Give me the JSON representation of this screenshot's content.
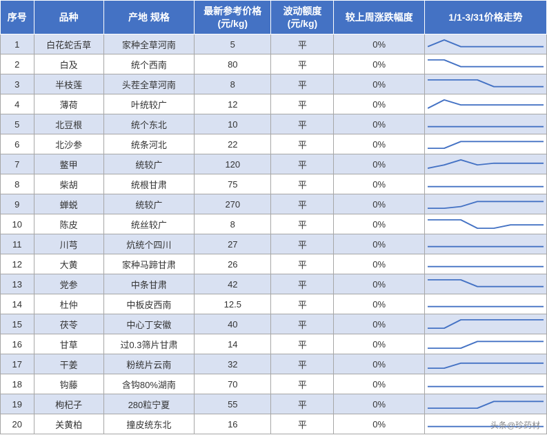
{
  "table": {
    "header_bg": "#4472c4",
    "header_fg": "#ffffff",
    "row_odd_bg": "#d9e1f2",
    "row_even_bg": "#ffffff",
    "border_color": "#a6a6a6",
    "spark_color": "#4472c4",
    "columns": [
      {
        "key": "idx",
        "label": "序号"
      },
      {
        "key": "name",
        "label": "品种"
      },
      {
        "key": "spec",
        "label": "产地 规格"
      },
      {
        "key": "price",
        "label": "最新参考价格\n(元/kg)"
      },
      {
        "key": "amp",
        "label": "波动额度\n(元/kg)"
      },
      {
        "key": "chg",
        "label": "较上周涨跌幅度"
      },
      {
        "key": "trend",
        "label": "1/1-3/31价格走势"
      }
    ],
    "rows": [
      {
        "idx": "1",
        "name": "白花蛇舌草",
        "spec": "家种全草河南",
        "price": "5",
        "amp": "平",
        "chg": "0%",
        "spark": [
          12,
          4,
          12,
          12,
          12,
          12,
          12,
          12
        ]
      },
      {
        "idx": "2",
        "name": "白及",
        "spec": "统个西南",
        "price": "80",
        "amp": "平",
        "chg": "0%",
        "spark": [
          4,
          4,
          12,
          12,
          12,
          12,
          12,
          12
        ]
      },
      {
        "idx": "3",
        "name": "半枝莲",
        "spec": "头茬全草河南",
        "price": "8",
        "amp": "平",
        "chg": "0%",
        "spark": [
          4,
          4,
          4,
          4,
          12,
          12,
          12,
          12
        ]
      },
      {
        "idx": "4",
        "name": "薄荷",
        "spec": "叶统较广",
        "price": "12",
        "amp": "平",
        "chg": "0%",
        "spark": [
          14,
          4,
          10,
          10,
          10,
          10,
          10,
          10
        ]
      },
      {
        "idx": "5",
        "name": "北豆根",
        "spec": "统个东北",
        "price": "10",
        "amp": "平",
        "chg": "0%",
        "spark": [
          12,
          12,
          12,
          12,
          12,
          12,
          12,
          12
        ]
      },
      {
        "idx": "6",
        "name": "北沙参",
        "spec": "统条河北",
        "price": "22",
        "amp": "平",
        "chg": "0%",
        "spark": [
          14,
          14,
          6,
          6,
          6,
          6,
          6,
          6
        ]
      },
      {
        "idx": "7",
        "name": "鳖甲",
        "spec": "统较广",
        "price": "120",
        "amp": "平",
        "chg": "0%",
        "spark": [
          14,
          10,
          4,
          10,
          8,
          8,
          8,
          8
        ]
      },
      {
        "idx": "8",
        "name": "柴胡",
        "spec": "统根甘肃",
        "price": "75",
        "amp": "平",
        "chg": "0%",
        "spark": [
          12,
          12,
          12,
          12,
          12,
          12,
          12,
          12
        ]
      },
      {
        "idx": "9",
        "name": "蝉蜕",
        "spec": "统较广",
        "price": "270",
        "amp": "平",
        "chg": "0%",
        "spark": [
          14,
          14,
          12,
          6,
          6,
          6,
          6,
          6
        ]
      },
      {
        "idx": "10",
        "name": "陈皮",
        "spec": "统丝较广",
        "price": "8",
        "amp": "平",
        "chg": "0%",
        "spark": [
          4,
          4,
          4,
          14,
          14,
          10,
          10,
          10
        ]
      },
      {
        "idx": "11",
        "name": "川芎",
        "spec": "炕统个四川",
        "price": "27",
        "amp": "平",
        "chg": "0%",
        "spark": [
          12,
          12,
          12,
          12,
          12,
          12,
          12,
          12
        ]
      },
      {
        "idx": "12",
        "name": "大黄",
        "spec": "家种马蹄甘肃",
        "price": "26",
        "amp": "平",
        "chg": "0%",
        "spark": [
          12,
          12,
          12,
          12,
          12,
          12,
          12,
          12
        ]
      },
      {
        "idx": "13",
        "name": "党参",
        "spec": "中条甘肃",
        "price": "42",
        "amp": "平",
        "chg": "0%",
        "spark": [
          4,
          4,
          4,
          12,
          12,
          12,
          12,
          12
        ]
      },
      {
        "idx": "14",
        "name": "杜仲",
        "spec": "中板皮西南",
        "price": "12.5",
        "amp": "平",
        "chg": "0%",
        "spark": [
          12,
          12,
          12,
          12,
          12,
          12,
          12,
          12
        ]
      },
      {
        "idx": "15",
        "name": "茯苓",
        "spec": "中心丁安徽",
        "price": "40",
        "amp": "平",
        "chg": "0%",
        "spark": [
          14,
          14,
          4,
          4,
          4,
          4,
          4,
          4
        ]
      },
      {
        "idx": "16",
        "name": "甘草",
        "spec": "过0.3筛片甘肃",
        "price": "14",
        "amp": "平",
        "chg": "0%",
        "spark": [
          14,
          14,
          14,
          6,
          6,
          6,
          6,
          6
        ]
      },
      {
        "idx": "17",
        "name": "干姜",
        "spec": "粉统片云南",
        "price": "32",
        "amp": "平",
        "chg": "0%",
        "spark": [
          14,
          14,
          8,
          8,
          8,
          8,
          8,
          8
        ]
      },
      {
        "idx": "18",
        "name": "钩藤",
        "spec": "含钩80%湖南",
        "price": "70",
        "amp": "平",
        "chg": "0%",
        "spark": [
          12,
          12,
          12,
          12,
          12,
          12,
          12,
          12
        ]
      },
      {
        "idx": "19",
        "name": "枸杞子",
        "spec": "280粒宁夏",
        "price": "55",
        "amp": "平",
        "chg": "0%",
        "spark": [
          14,
          14,
          14,
          14,
          6,
          6,
          6,
          6
        ]
      },
      {
        "idx": "20",
        "name": "关黄柏",
        "spec": "撞皮统东北",
        "price": "16",
        "amp": "平",
        "chg": "0%",
        "spark": [
          12,
          12,
          12,
          12,
          12,
          12,
          12,
          12
        ]
      }
    ]
  },
  "watermark": "头条@珍药材"
}
